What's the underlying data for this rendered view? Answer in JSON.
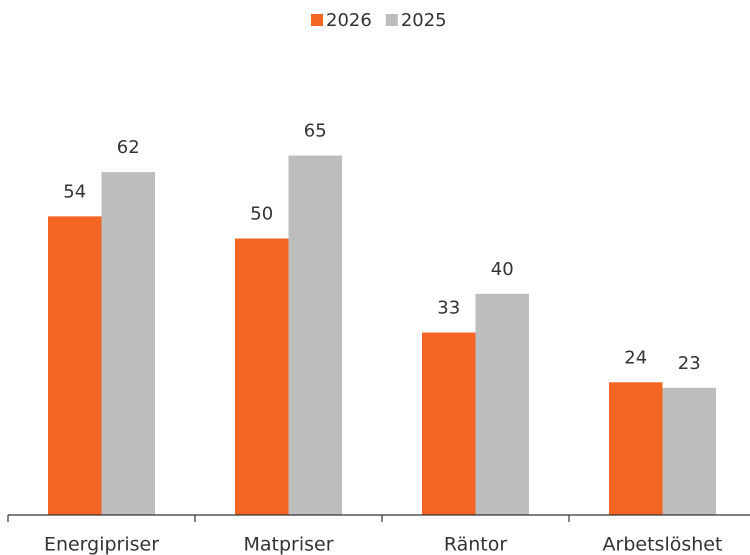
{
  "chart_data": {
    "type": "bar",
    "categories": [
      "Energipriser",
      "Matpriser",
      "Räntor",
      "Arbetslöshet"
    ],
    "series": [
      {
        "name": "2026",
        "color": "#f26522",
        "values": [
          54,
          50,
          33,
          24
        ]
      },
      {
        "name": "2025",
        "color": "#bdbdbd",
        "values": [
          62,
          65,
          40,
          23
        ]
      }
    ],
    "legend": "top"
  }
}
